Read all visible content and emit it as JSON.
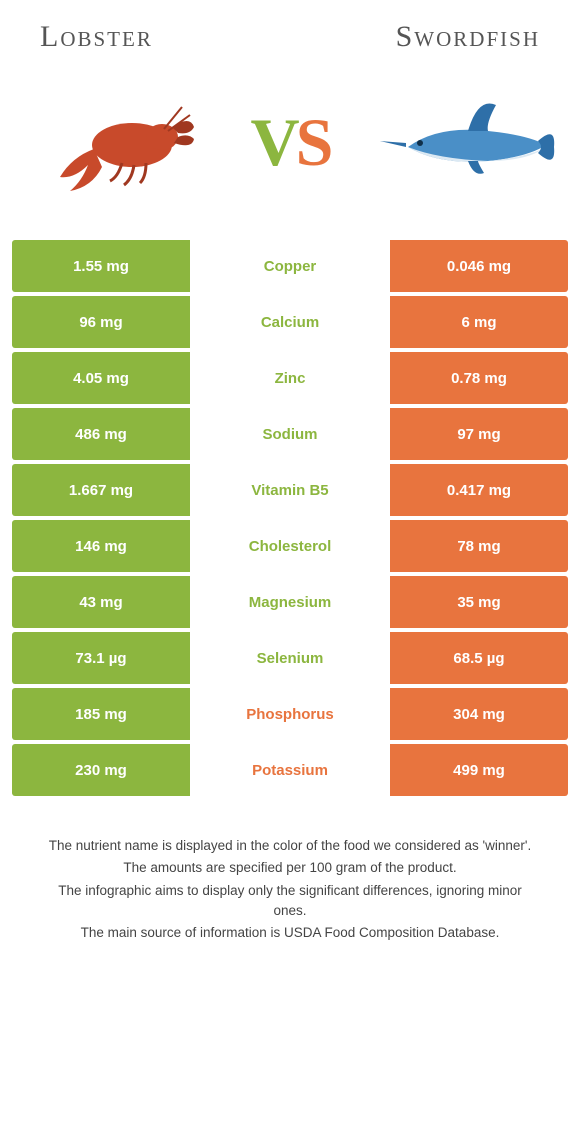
{
  "header": {
    "left_title": "Lobster",
    "right_title": "Swordfish",
    "vs_v": "V",
    "vs_s": "S"
  },
  "colors": {
    "left": "#8cb63f",
    "right": "#e8743e",
    "lobster_body": "#c84a2b",
    "lobster_dark": "#a03820",
    "sword_body": "#4a8fc7",
    "sword_dark": "#2e6fa8",
    "sword_belly": "#dce9f3"
  },
  "rows": [
    {
      "left": "1.55 mg",
      "label": "Copper",
      "right": "0.046 mg",
      "winner": "left"
    },
    {
      "left": "96 mg",
      "label": "Calcium",
      "right": "6 mg",
      "winner": "left"
    },
    {
      "left": "4.05 mg",
      "label": "Zinc",
      "right": "0.78 mg",
      "winner": "left"
    },
    {
      "left": "486 mg",
      "label": "Sodium",
      "right": "97 mg",
      "winner": "left"
    },
    {
      "left": "1.667 mg",
      "label": "Vitamin B5",
      "right": "0.417 mg",
      "winner": "left"
    },
    {
      "left": "146 mg",
      "label": "Cholesterol",
      "right": "78 mg",
      "winner": "left"
    },
    {
      "left": "43 mg",
      "label": "Magnesium",
      "right": "35 mg",
      "winner": "left"
    },
    {
      "left": "73.1 µg",
      "label": "Selenium",
      "right": "68.5 µg",
      "winner": "left"
    },
    {
      "left": "185 mg",
      "label": "Phosphorus",
      "right": "304 mg",
      "winner": "right"
    },
    {
      "left": "230 mg",
      "label": "Potassium",
      "right": "499 mg",
      "winner": "right"
    }
  ],
  "notes": [
    "The nutrient name is displayed in the color of the food we considered as 'winner'.",
    "The amounts are specified per 100 gram of the product.",
    "The infographic aims to display only the significant differences, ignoring minor ones.",
    "The main source of information is USDA Food Composition Database."
  ]
}
